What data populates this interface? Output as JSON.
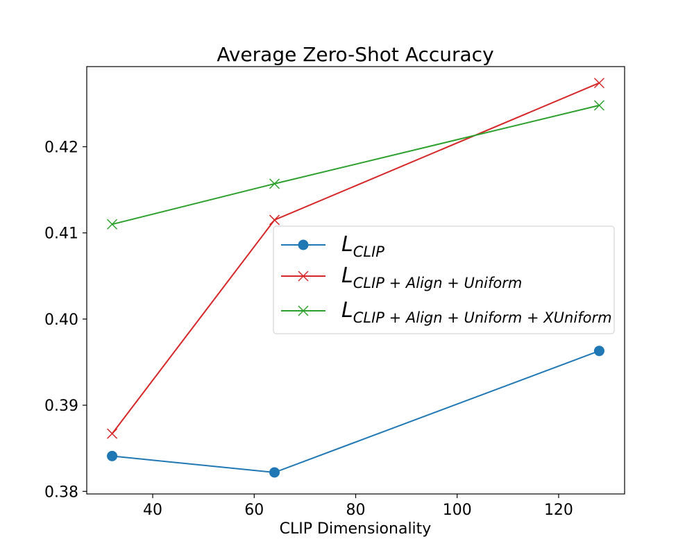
{
  "chart_data": {
    "type": "line",
    "title": "Average Zero-Shot Accuracy",
    "xlabel": "CLIP Dimensionality",
    "ylabel": "",
    "xlim": [
      27,
      133
    ],
    "ylim": [
      0.3797,
      0.4293
    ],
    "xticks": [
      40,
      60,
      80,
      100,
      120
    ],
    "xtick_labels": [
      "40",
      "60",
      "80",
      "100",
      "120"
    ],
    "yticks": [
      0.38,
      0.39,
      0.4,
      0.41,
      0.42
    ],
    "ytick_labels": [
      "0.38",
      "0.39",
      "0.40",
      "0.41",
      "0.42"
    ],
    "grid": false,
    "legend_position": "center-right",
    "x": [
      32,
      64,
      128
    ],
    "series": [
      {
        "name": "L",
        "name_sub": "CLIP",
        "color": "#1f77b4",
        "marker": "circle",
        "values": [
          0.3841,
          0.3822,
          0.3963
        ]
      },
      {
        "name": "L",
        "name_sub": "CLIP + Align + Uniform",
        "color": "#d62728",
        "marker": "x",
        "values": [
          0.3867,
          0.4115,
          0.4274
        ]
      },
      {
        "name": "L",
        "name_sub": "CLIP + Align + Uniform + XUniform",
        "color": "#2ca02c",
        "marker": "x",
        "values": [
          0.411,
          0.4157,
          0.4248
        ]
      }
    ]
  }
}
